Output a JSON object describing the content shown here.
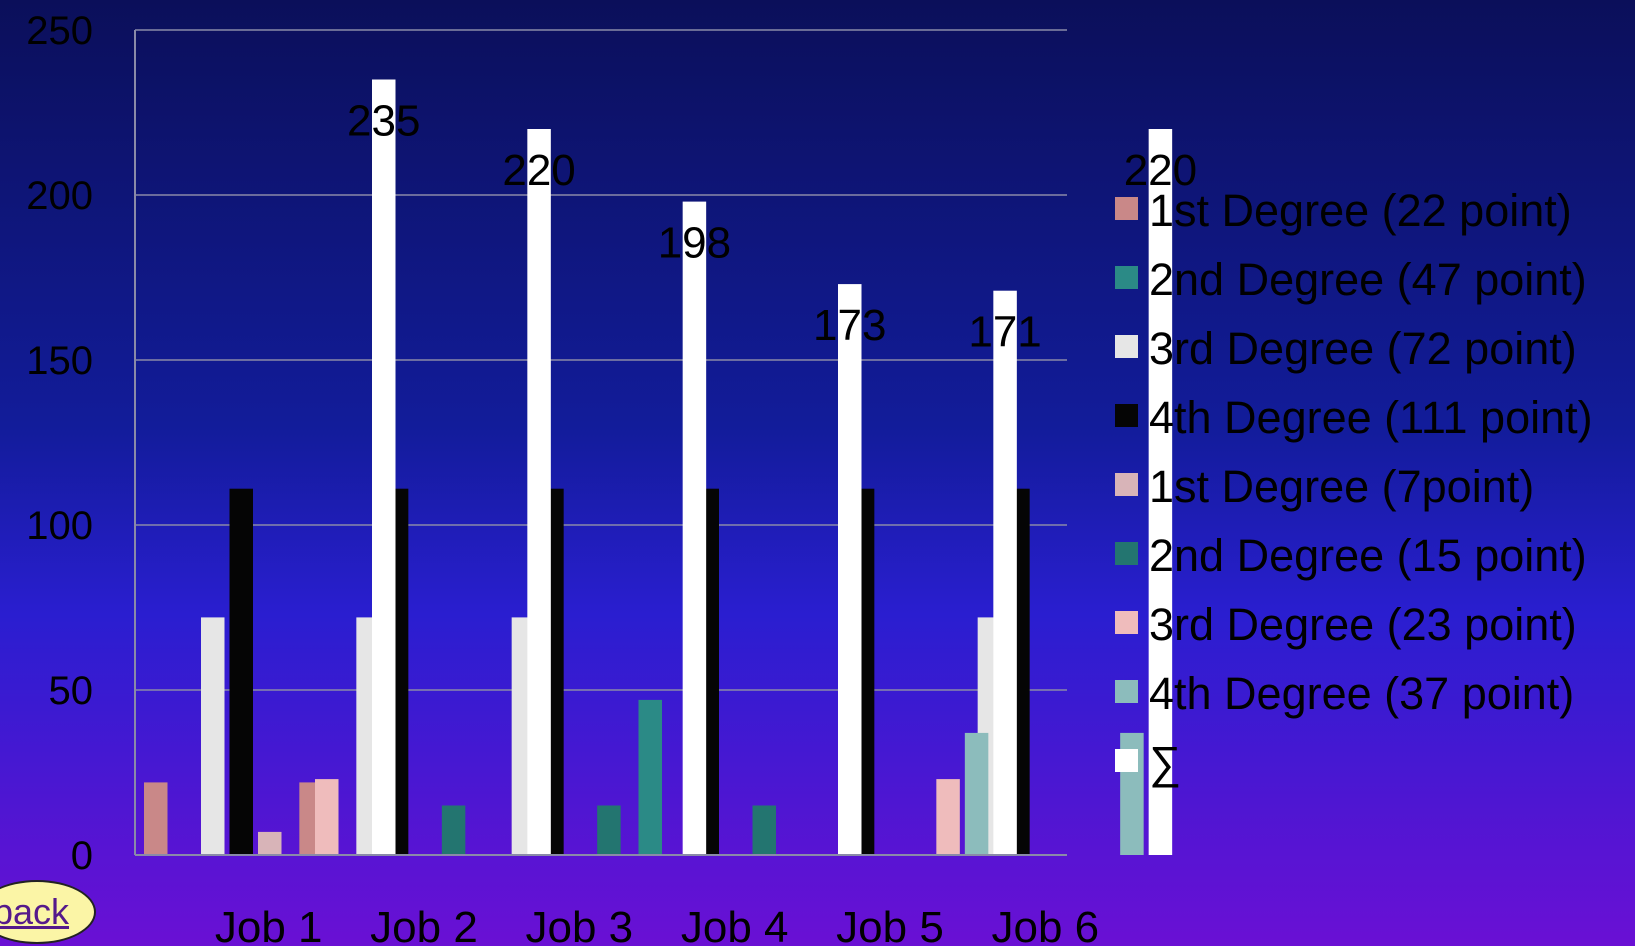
{
  "chart_data": {
    "type": "bar",
    "categories": [
      "Job 1",
      "Job 2",
      "Job 3",
      "Job 4",
      "Job 5",
      "Job 6"
    ],
    "series": [
      {
        "name": "1st Degree (22 point)",
        "color": "#c98888",
        "values": [
          22,
          22,
          0,
          0,
          0,
          0
        ]
      },
      {
        "name": "2nd Degree (47 point)",
        "color": "#2b8a86",
        "values": [
          0,
          0,
          0,
          47,
          0,
          0
        ]
      },
      {
        "name": "3rd Degree (72 point)",
        "color": "#e6e6e6",
        "values": [
          72,
          72,
          72,
          0,
          0,
          72
        ]
      },
      {
        "name": "4th Degree (111 point)",
        "color": "#050505",
        "values": [
          111,
          111,
          111,
          111,
          111,
          111
        ]
      },
      {
        "name": "1st Degree (7point)",
        "color": "#d8b4b8",
        "values": [
          7,
          0,
          0,
          0,
          0,
          0
        ]
      },
      {
        "name": "2nd Degree (15 point)",
        "color": "#237570",
        "values": [
          0,
          15,
          15,
          15,
          0,
          0
        ]
      },
      {
        "name": "3rd Degree (23 point)",
        "color": "#efbcbc",
        "values": [
          23,
          0,
          0,
          0,
          23,
          0
        ]
      },
      {
        "name": "4th Degree (37 point)",
        "color": "#8cbcbc",
        "values": [
          0,
          0,
          0,
          0,
          37,
          37
        ]
      },
      {
        "name": "∑",
        "color": "#ffffff",
        "values": [
          235,
          220,
          198,
          173,
          171,
          220
        ],
        "labels": [
          "235",
          "220",
          "198",
          "173",
          "171",
          "220"
        ]
      }
    ],
    "ylim": [
      0,
      250
    ],
    "yticks": [
      "0",
      "50",
      "100",
      "150",
      "200",
      "250"
    ],
    "grid": true,
    "legend_position": "right"
  },
  "back_button": {
    "label": "back"
  }
}
